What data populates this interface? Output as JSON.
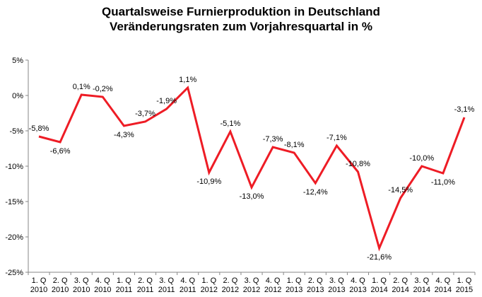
{
  "chart_data": {
    "type": "line",
    "title": "Quartalsweise Furnierproduktion in Deutschland",
    "subtitle": "Veränderungsraten zum Vorjahresquartal in %",
    "xlabel": "",
    "ylabel": "",
    "ylim": [
      -25,
      5
    ],
    "yticks": [
      "5%",
      "0%",
      "-5%",
      "-10%",
      "-15%",
      "-20%",
      "-25%"
    ],
    "ytick_values": [
      5,
      0,
      -5,
      -10,
      -15,
      -20,
      -25
    ],
    "grid": false,
    "legend": "none",
    "categories": [
      {
        "q": "1. Q",
        "y": "2010"
      },
      {
        "q": "2. Q",
        "y": "2010"
      },
      {
        "q": "3. Q",
        "y": "2010"
      },
      {
        "q": "4. Q",
        "y": "2010"
      },
      {
        "q": "1. Q",
        "y": "2011"
      },
      {
        "q": "2. Q",
        "y": "2011"
      },
      {
        "q": "3. Q",
        "y": "2011"
      },
      {
        "q": "4. Q",
        "y": "2011"
      },
      {
        "q": "1. Q",
        "y": "2012"
      },
      {
        "q": "2. Q",
        "y": "2012"
      },
      {
        "q": "3. Q",
        "y": "2012"
      },
      {
        "q": "4. Q",
        "y": "2012"
      },
      {
        "q": "1. Q",
        "y": "2013"
      },
      {
        "q": "2. Q",
        "y": "2013"
      },
      {
        "q": "3. Q",
        "y": "2013"
      },
      {
        "q": "4. Q",
        "y": "2013"
      },
      {
        "q": "1. Q",
        "y": "2014"
      },
      {
        "q": "2. Q",
        "y": "2014"
      },
      {
        "q": "3. Q",
        "y": "2014"
      },
      {
        "q": "4. Q",
        "y": "2014"
      },
      {
        "q": "1. Q",
        "y": "2015"
      }
    ],
    "series": [
      {
        "color": "#ee1c25",
        "values": [
          -5.8,
          -6.6,
          0.1,
          -0.2,
          -4.3,
          -3.7,
          -1.9,
          1.1,
          -10.9,
          -5.1,
          -13.0,
          -7.3,
          -8.1,
          -12.4,
          -7.1,
          -10.8,
          -21.6,
          -14.5,
          -10.0,
          -11.0,
          -3.1
        ],
        "labels": [
          "-5,8%",
          "-6,6%",
          "0,1%",
          "-0,2%",
          "-4,3%",
          "-3,7%",
          "-1,9%",
          "1,1%",
          "-10,9%",
          "-5,1%",
          "-13,0%",
          "-7,3%",
          "-8,1%",
          "-12,4%",
          "-7,1%",
          "-10,8%",
          "-21,6%",
          "-14,5%",
          "-10,0%",
          "-11,0%",
          "-3,1%"
        ]
      }
    ]
  }
}
